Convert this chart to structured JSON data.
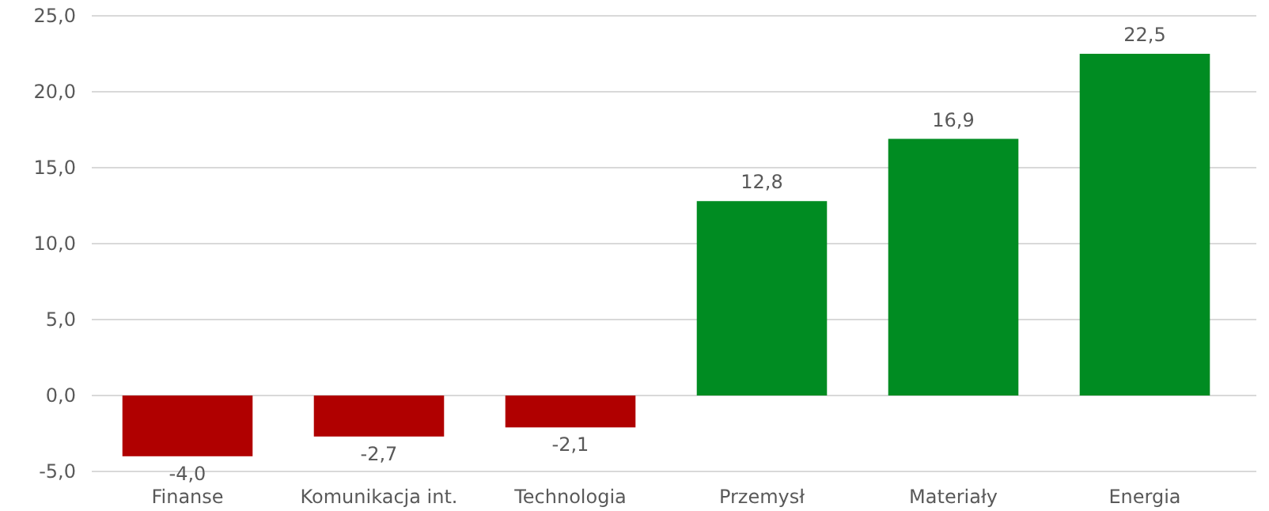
{
  "chart_data": {
    "type": "bar",
    "categories": [
      "Finanse",
      "Komunikacja int.",
      "Technologia",
      "Przemysł",
      "Materiały",
      "Energia"
    ],
    "values": [
      -4.0,
      -2.7,
      -2.1,
      12.8,
      16.9,
      22.5
    ],
    "colors": [
      "#b00000",
      "#b00000",
      "#b00000",
      "#008c22",
      "#008c22",
      "#008c22"
    ],
    "value_labels": [
      "-4,0",
      "-2,7",
      "-2,1",
      "12,8",
      "16,9",
      "22,5"
    ],
    "ylim": [
      -5,
      25
    ],
    "yticks": [
      {
        "value": -5,
        "label": "-5,0"
      },
      {
        "value": 0,
        "label": "0,0"
      },
      {
        "value": 5,
        "label": "5,0"
      },
      {
        "value": 10,
        "label": "10,0"
      },
      {
        "value": 15,
        "label": "15,0"
      },
      {
        "value": 20,
        "label": "20,0"
      },
      {
        "value": 25,
        "label": "25,0"
      }
    ],
    "grid": true
  }
}
